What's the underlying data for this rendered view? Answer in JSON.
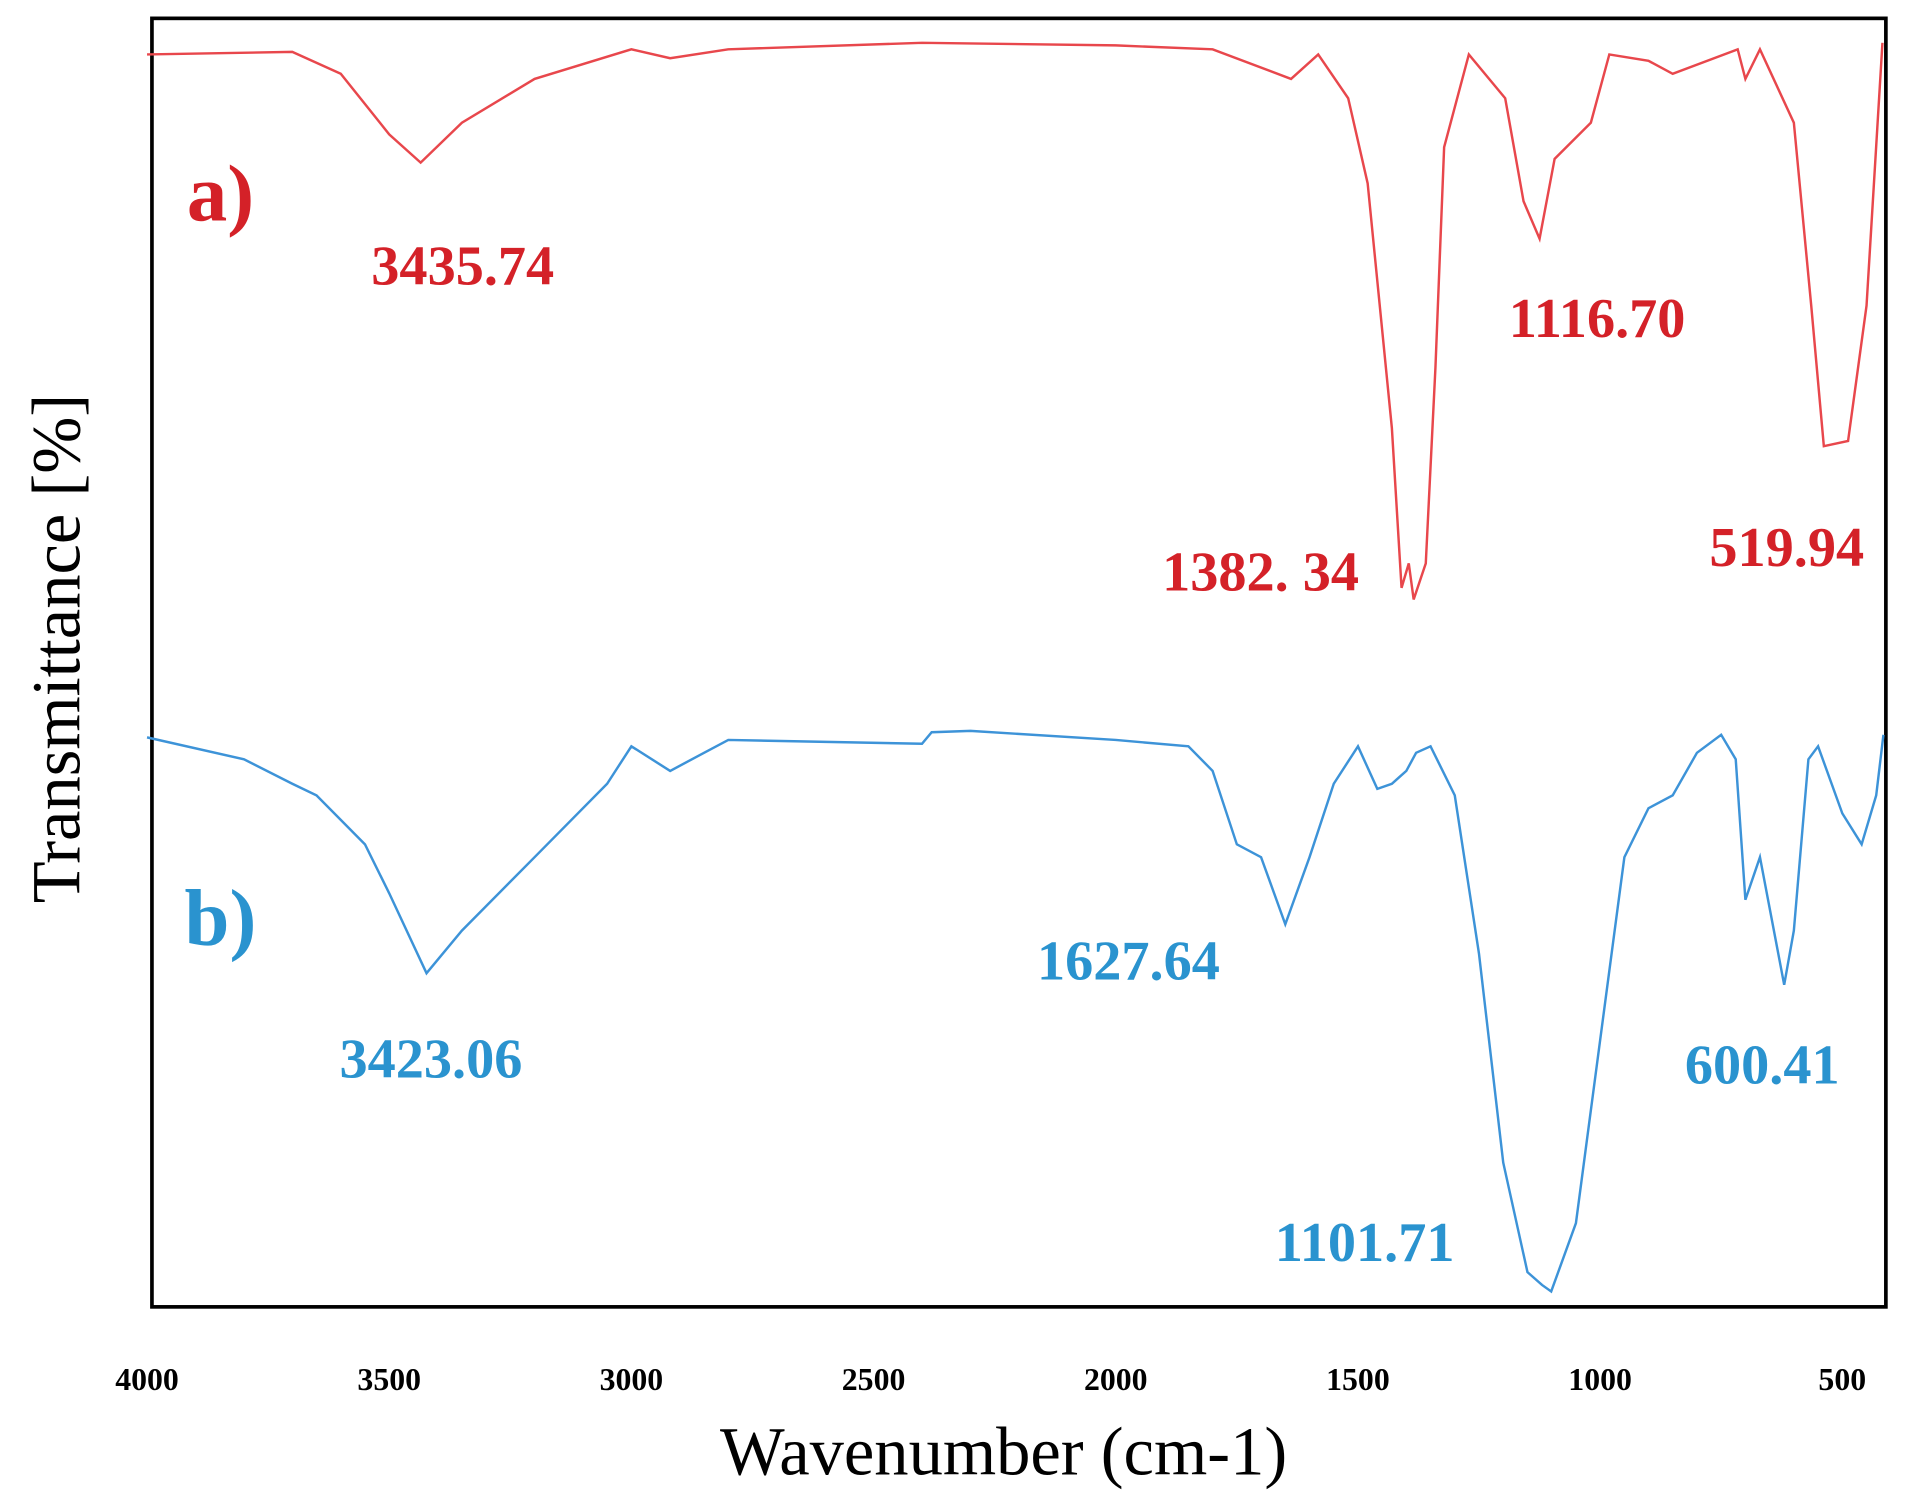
{
  "chart_data": {
    "type": "line",
    "x_label": "Wavenumber (cm-1)",
    "y_label": "Transmittance [%]",
    "xlim": [
      4000,
      410
    ],
    "xticks": [
      4000,
      3500,
      3000,
      2500,
      2000,
      1500,
      1000,
      500
    ],
    "ylim": [
      0,
      100
    ],
    "series": [
      {
        "name": "a)",
        "color": "#e8474c",
        "x": [
          4000,
          3700,
          3600,
          3500,
          3435,
          3350,
          3200,
          3000,
          2920,
          2800,
          2400,
          2000,
          1800,
          1638,
          1582,
          1520,
          1480,
          1430,
          1410,
          1395,
          1385,
          1360,
          1340,
          1322,
          1271,
          1196,
          1158,
          1125,
          1094,
          1019,
          981,
          900,
          850,
          716,
          700,
          670,
          600,
          564,
          538,
          488,
          450,
          417
        ],
        "values": [
          97.2,
          97.4,
          95.7,
          91.0,
          88.8,
          91.9,
          95.3,
          97.6,
          96.9,
          97.6,
          98.1,
          97.9,
          97.6,
          95.3,
          97.2,
          93.8,
          87.2,
          68.2,
          55.8,
          57.7,
          54.9,
          57.7,
          72.9,
          90.0,
          97.2,
          93.8,
          85.8,
          82.9,
          89.1,
          91.9,
          97.2,
          96.7,
          95.7,
          97.6,
          95.3,
          97.6,
          91.9,
          77.7,
          66.8,
          67.2,
          77.7,
          98.1
        ]
      },
      {
        "name": "b)",
        "color": "#3d93d8",
        "x": [
          4000,
          3800,
          3700,
          3650,
          3550,
          3500,
          3423,
          3350,
          3200,
          3050,
          3000,
          2920,
          2850,
          2800,
          2400,
          2380,
          2300,
          2000,
          1850,
          1800,
          1750,
          1700,
          1650,
          1600,
          1550,
          1500,
          1460,
          1430,
          1400,
          1380,
          1350,
          1300,
          1250,
          1200,
          1150,
          1120,
          1101,
          1050,
          1000,
          950,
          900,
          850,
          800,
          750,
          720,
          700,
          670,
          620,
          600,
          570,
          550,
          500,
          460,
          430,
          415
        ],
        "values": [
          44.2,
          42.5,
          40.6,
          39.7,
          35.9,
          32.1,
          25.9,
          29.2,
          34.9,
          40.6,
          43.5,
          41.6,
          43.0,
          44.0,
          43.7,
          44.6,
          44.7,
          44.0,
          43.5,
          41.6,
          35.9,
          34.9,
          29.7,
          34.9,
          40.6,
          43.5,
          40.2,
          40.6,
          41.6,
          43.0,
          43.5,
          39.7,
          27.4,
          11.2,
          2.7,
          1.7,
          1.2,
          6.5,
          20.7,
          34.9,
          38.7,
          39.7,
          43.0,
          44.4,
          42.5,
          31.6,
          34.9,
          25.0,
          29.2,
          42.5,
          43.5,
          38.3,
          35.9,
          39.7,
          44.4
        ]
      }
    ],
    "annotations": [
      {
        "text": "a)",
        "color": "#d42128"
      },
      {
        "text": "3435.74",
        "color": "#d42128"
      },
      {
        "text": "1116.70",
        "color": "#d42128"
      },
      {
        "text": "1382. 34",
        "color": "#d42128"
      },
      {
        "text": "519.94",
        "color": "#d42128"
      },
      {
        "text": "b)",
        "color": "#2a93cf"
      },
      {
        "text": "1627.64",
        "color": "#2a93cf"
      },
      {
        "text": "3423.06",
        "color": "#2a93cf"
      },
      {
        "text": "600.41",
        "color": "#2a93cf"
      },
      {
        "text": "1101.71",
        "color": "#2a93cf"
      }
    ]
  }
}
